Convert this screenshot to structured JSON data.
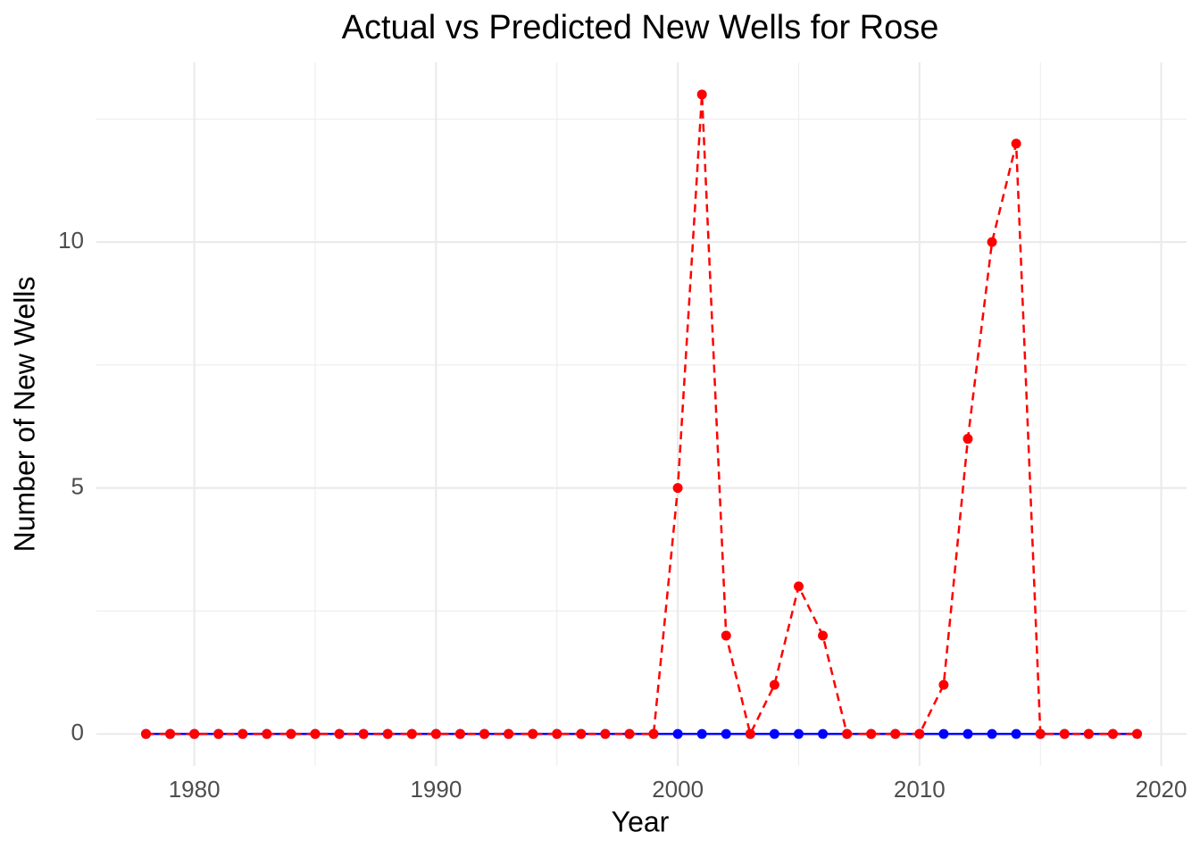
{
  "chart_data": {
    "type": "line",
    "title": "Actual vs Predicted New Wells for Rose",
    "x_label": "Year",
    "y_label": "Number of New Wells",
    "x": [
      1978,
      1979,
      1980,
      1981,
      1982,
      1983,
      1984,
      1985,
      1986,
      1987,
      1988,
      1989,
      1990,
      1991,
      1992,
      1993,
      1994,
      1995,
      1996,
      1997,
      1998,
      1999,
      2000,
      2001,
      2002,
      2003,
      2004,
      2005,
      2006,
      2007,
      2008,
      2009,
      2010,
      2011,
      2012,
      2013,
      2014,
      2015,
      2016,
      2017,
      2018,
      2019
    ],
    "series": [
      {
        "color": "#0000ff",
        "dash": false,
        "values": [
          0,
          0,
          0,
          0,
          0,
          0,
          0,
          0,
          0,
          0,
          0,
          0,
          0,
          0,
          0,
          0,
          0,
          0,
          0,
          0,
          0,
          0,
          0,
          0,
          0,
          0,
          0,
          0,
          0,
          0,
          0,
          0,
          0,
          0,
          0,
          0,
          0,
          0,
          0,
          0,
          0,
          0
        ]
      },
      {
        "color": "#ff0000",
        "dash": true,
        "values": [
          0,
          0,
          0,
          0,
          0,
          0,
          0,
          0,
          0,
          0,
          0,
          0,
          0,
          0,
          0,
          0,
          0,
          0,
          0,
          0,
          0,
          0,
          5,
          13,
          2,
          0,
          1,
          3,
          2,
          0,
          0,
          0,
          0,
          1,
          6,
          10,
          12,
          0,
          0,
          0,
          0,
          0
        ]
      }
    ],
    "xlim": [
      1975.95,
      2021.05
    ],
    "xticks": [
      1980,
      1990,
      2000,
      2010,
      2020
    ],
    "xminor": [
      1985,
      1995,
      2005,
      2015
    ],
    "ylim": [
      -0.65,
      13.65
    ],
    "yticks": [
      0,
      5,
      10
    ],
    "yminor": [
      2.5,
      7.5,
      12.5
    ],
    "grid": true
  }
}
